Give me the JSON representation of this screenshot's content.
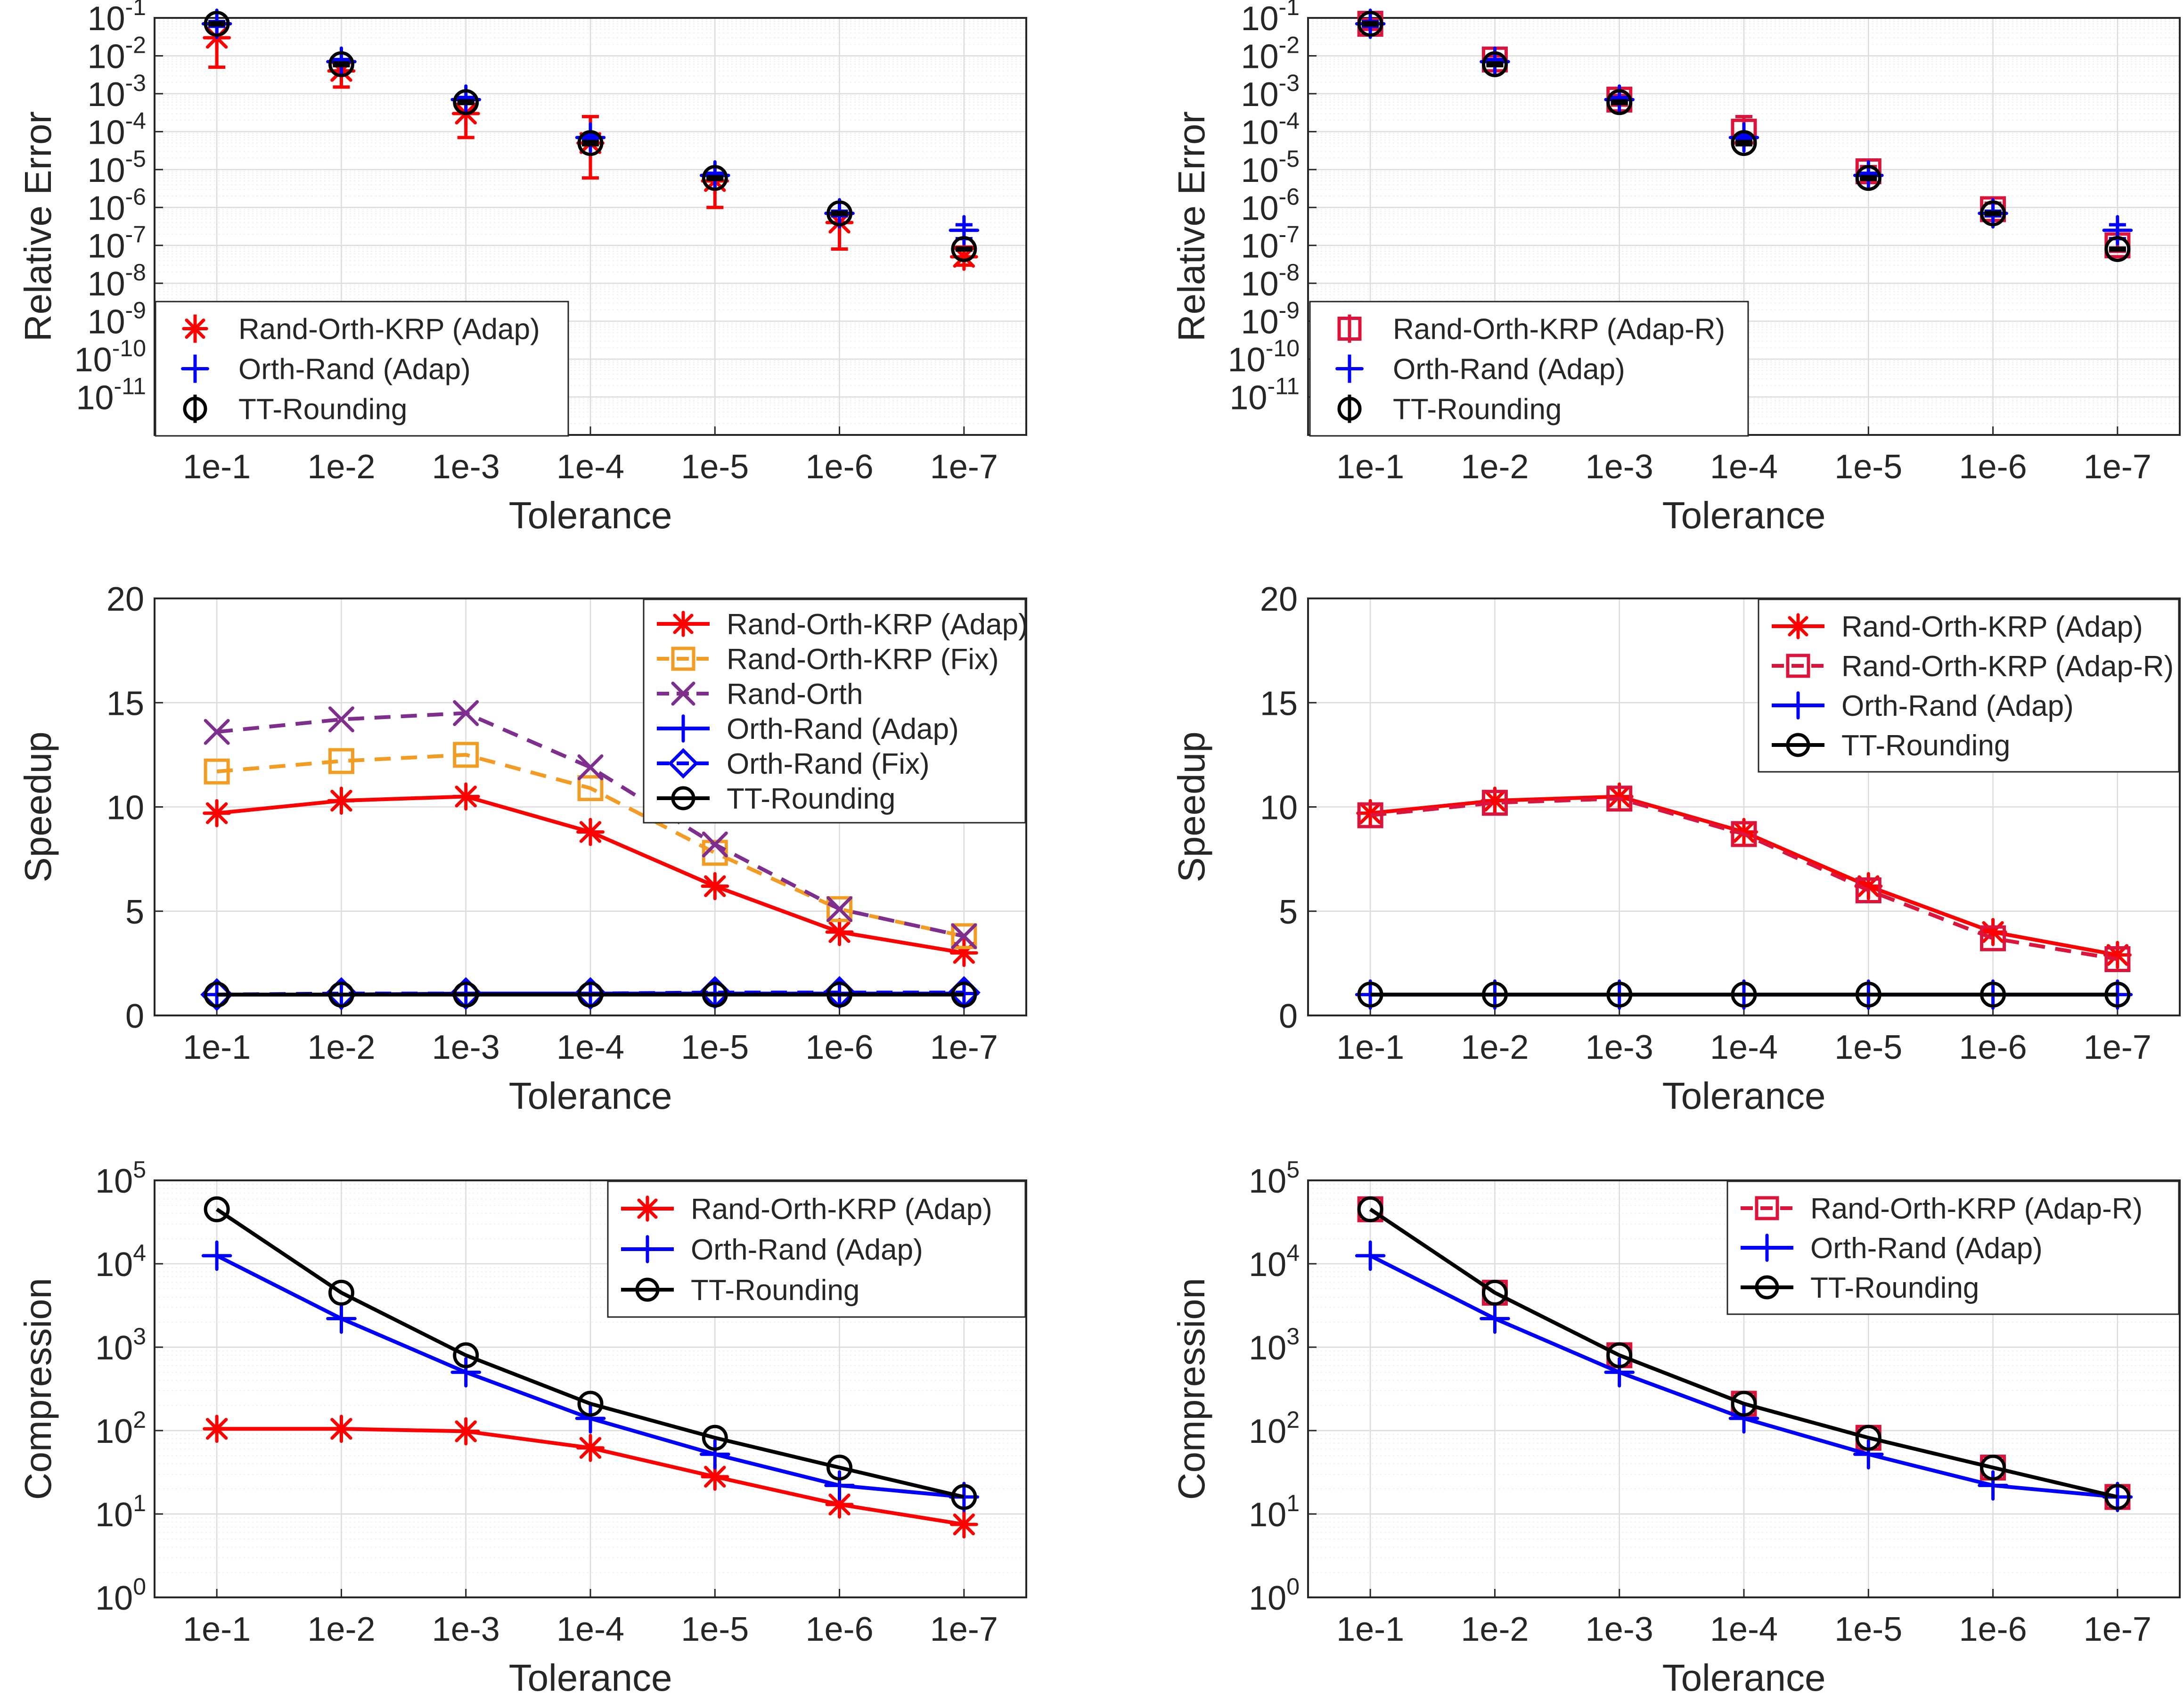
{
  "figure": {
    "xlabel": "Tolerance",
    "categories": [
      "1e-1",
      "1e-2",
      "1e-3",
      "1e-4",
      "1e-5",
      "1e-6",
      "1e-7"
    ],
    "colors": {
      "red": "#ff0000",
      "crimson": "#dc143c",
      "blue": "#0000ff",
      "black": "#000000",
      "orange": "#f39c24",
      "purple": "#7e2f8e",
      "axis": "#262626",
      "grid": "#dcdcdc"
    }
  },
  "chart_data": [
    {
      "id": "error-left",
      "type": "errorbar",
      "ylabel": "Relative Error",
      "xlabel": "Tolerance",
      "yscale": "log",
      "ylim": [
        1e-12,
        0.1
      ],
      "yticks": [
        {
          "value": 0.1,
          "base": "10",
          "exp": "-1"
        },
        {
          "value": 0.01,
          "base": "10",
          "exp": "-2"
        },
        {
          "value": 0.001,
          "base": "10",
          "exp": "-3"
        },
        {
          "value": 0.0001,
          "base": "10",
          "exp": "-4"
        },
        {
          "value": 1e-05,
          "base": "10",
          "exp": "-5"
        },
        {
          "value": 1e-06,
          "base": "10",
          "exp": "-6"
        },
        {
          "value": 1e-07,
          "base": "10",
          "exp": "-7"
        },
        {
          "value": 1e-08,
          "base": "10",
          "exp": "-8"
        },
        {
          "value": 1e-09,
          "base": "10",
          "exp": "-9"
        },
        {
          "value": 1e-10,
          "base": "10",
          "exp": "-10"
        },
        {
          "value": 1e-11,
          "base": "10",
          "exp": "-11"
        }
      ],
      "grid": true,
      "legend": "bottom-left",
      "series": [
        {
          "name": "Rand-Orth-KRP (Adap)",
          "color": "red",
          "marker": "asterisk",
          "lineStyle": "none",
          "values": [
            0.03,
            0.004,
            0.0003,
            5e-05,
            5e-06,
            4e-07,
            5e-08
          ],
          "low": [
            0.005,
            0.0015,
            7e-05,
            6e-06,
            1e-06,
            8e-08,
            3e-08
          ],
          "high": [
            0.07,
            0.007,
            0.0007,
            0.00025,
            7e-06,
            7e-07,
            9e-08
          ]
        },
        {
          "name": "Orth-Rand (Adap)",
          "color": "blue",
          "marker": "plus",
          "lineStyle": "none",
          "values": [
            0.07,
            0.007,
            0.0007,
            7e-05,
            7e-06,
            7e-07,
            2.5e-07
          ],
          "low": [
            0.06,
            0.006,
            0.0006,
            6e-05,
            6e-06,
            6e-07,
            1.5e-07
          ],
          "high": [
            0.08,
            0.008,
            0.0008,
            8e-05,
            8e-06,
            8e-07,
            3.5e-07
          ]
        },
        {
          "name": "TT-Rounding",
          "color": "black",
          "marker": "circle",
          "lineStyle": "none",
          "values": [
            0.07,
            0.006,
            0.0006,
            5e-05,
            6e-06,
            7e-07,
            8e-08
          ],
          "low": [
            0.065,
            0.0055,
            0.00055,
            4.5e-05,
            5.5e-06,
            6.5e-07,
            7.5e-08
          ],
          "high": [
            0.075,
            0.0065,
            0.00065,
            5.5e-05,
            6.5e-06,
            7.5e-07,
            8.5e-08
          ]
        }
      ]
    },
    {
      "id": "error-right",
      "type": "errorbar",
      "ylabel": "Relative Error",
      "xlabel": "Tolerance",
      "yscale": "log",
      "ylim": [
        1e-12,
        0.1
      ],
      "yticks": [
        {
          "value": 0.1,
          "base": "10",
          "exp": "-1"
        },
        {
          "value": 0.01,
          "base": "10",
          "exp": "-2"
        },
        {
          "value": 0.001,
          "base": "10",
          "exp": "-3"
        },
        {
          "value": 0.0001,
          "base": "10",
          "exp": "-4"
        },
        {
          "value": 1e-05,
          "base": "10",
          "exp": "-5"
        },
        {
          "value": 1e-06,
          "base": "10",
          "exp": "-6"
        },
        {
          "value": 1e-07,
          "base": "10",
          "exp": "-7"
        },
        {
          "value": 1e-08,
          "base": "10",
          "exp": "-8"
        },
        {
          "value": 1e-09,
          "base": "10",
          "exp": "-9"
        },
        {
          "value": 1e-10,
          "base": "10",
          "exp": "-10"
        },
        {
          "value": 1e-11,
          "base": "10",
          "exp": "-11"
        }
      ],
      "grid": true,
      "legend": "bottom-left",
      "series": [
        {
          "name": "Rand-Orth-KRP (Adap-R)",
          "color": "crimson",
          "marker": "square",
          "lineStyle": "none",
          "values": [
            0.07,
            0.008,
            0.0007,
            0.0001,
            9e-06,
            9e-07,
            1e-07
          ],
          "low": [
            0.05,
            0.006,
            0.0005,
            5e-05,
            6e-06,
            6e-07,
            7e-08
          ],
          "high": [
            0.09,
            0.01,
            0.0009,
            0.00025,
            1.2e-05,
            1.3e-06,
            1.5e-07
          ]
        },
        {
          "name": "Orth-Rand (Adap)",
          "color": "blue",
          "marker": "plus",
          "lineStyle": "none",
          "values": [
            0.07,
            0.007,
            0.0007,
            7e-05,
            7e-06,
            7e-07,
            2.5e-07
          ],
          "low": [
            0.06,
            0.006,
            0.0006,
            6e-05,
            6e-06,
            6e-07,
            1.5e-07
          ],
          "high": [
            0.08,
            0.008,
            0.0008,
            8e-05,
            8e-06,
            8e-07,
            3.5e-07
          ]
        },
        {
          "name": "TT-Rounding",
          "color": "black",
          "marker": "circle",
          "lineStyle": "none",
          "values": [
            0.07,
            0.006,
            0.0006,
            5e-05,
            6e-06,
            7e-07,
            8e-08
          ],
          "low": [
            0.065,
            0.0055,
            0.00055,
            4.5e-05,
            5.5e-06,
            6.5e-07,
            7.5e-08
          ],
          "high": [
            0.075,
            0.0065,
            0.00065,
            5.5e-05,
            6.5e-06,
            7.5e-07,
            8.5e-08
          ]
        }
      ]
    },
    {
      "id": "speedup-left",
      "type": "line",
      "ylabel": "Speedup",
      "xlabel": "Tolerance",
      "yscale": "linear",
      "ylim": [
        0,
        20
      ],
      "yticks": [
        {
          "value": 0,
          "label": "0"
        },
        {
          "value": 5,
          "label": "5"
        },
        {
          "value": 10,
          "label": "10"
        },
        {
          "value": 15,
          "label": "15"
        },
        {
          "value": 20,
          "label": "20"
        }
      ],
      "grid": true,
      "legend": "top-right",
      "series": [
        {
          "name": "Rand-Orth-KRP (Adap)",
          "color": "red",
          "marker": "asterisk",
          "lineStyle": "solid",
          "values": [
            9.7,
            10.3,
            10.5,
            8.8,
            6.2,
            4.0,
            3.0
          ]
        },
        {
          "name": "Rand-Orth-KRP (Fix)",
          "color": "orange",
          "marker": "square",
          "lineStyle": "dashed",
          "values": [
            11.7,
            12.2,
            12.5,
            10.9,
            7.8,
            5.1,
            3.8
          ]
        },
        {
          "name": "Rand-Orth",
          "color": "purple",
          "marker": "x",
          "lineStyle": "dashed",
          "values": [
            13.6,
            14.2,
            14.5,
            11.9,
            8.2,
            5.1,
            3.8
          ]
        },
        {
          "name": "Orth-Rand (Adap)",
          "color": "blue",
          "marker": "plus",
          "lineStyle": "solid",
          "values": [
            1.0,
            1.0,
            1.05,
            1.05,
            1.05,
            1.05,
            1.05
          ]
        },
        {
          "name": "Orth-Rand (Fix)",
          "color": "blue",
          "marker": "diamond",
          "lineStyle": "dashed",
          "values": [
            1.0,
            1.05,
            1.05,
            1.05,
            1.1,
            1.1,
            1.1
          ]
        },
        {
          "name": "TT-Rounding",
          "color": "black",
          "marker": "circle",
          "lineStyle": "solid",
          "values": [
            1.0,
            1.0,
            1.0,
            1.0,
            1.0,
            1.0,
            1.0
          ]
        }
      ]
    },
    {
      "id": "speedup-right",
      "type": "line",
      "ylabel": "Speedup",
      "xlabel": "Tolerance",
      "yscale": "linear",
      "ylim": [
        0,
        20
      ],
      "yticks": [
        {
          "value": 0,
          "label": "0"
        },
        {
          "value": 5,
          "label": "5"
        },
        {
          "value": 10,
          "label": "10"
        },
        {
          "value": 15,
          "label": "15"
        },
        {
          "value": 20,
          "label": "20"
        }
      ],
      "grid": true,
      "legend": "top-right",
      "series": [
        {
          "name": "Rand-Orth-KRP (Adap)",
          "color": "red",
          "marker": "asterisk",
          "lineStyle": "solid",
          "values": [
            9.7,
            10.3,
            10.5,
            8.8,
            6.2,
            4.0,
            2.9
          ]
        },
        {
          "name": "Rand-Orth-KRP (Adap-R)",
          "color": "crimson",
          "marker": "square",
          "lineStyle": "dashed",
          "values": [
            9.6,
            10.2,
            10.4,
            8.7,
            6.0,
            3.7,
            2.7
          ]
        },
        {
          "name": "Orth-Rand (Adap)",
          "color": "blue",
          "marker": "plus",
          "lineStyle": "solid",
          "values": [
            1.0,
            1.0,
            1.0,
            1.0,
            1.0,
            1.0,
            1.0
          ]
        },
        {
          "name": "TT-Rounding",
          "color": "black",
          "marker": "circle",
          "lineStyle": "solid",
          "values": [
            1.0,
            1.0,
            1.0,
            1.0,
            1.0,
            1.0,
            1.0
          ]
        }
      ]
    },
    {
      "id": "compression-left",
      "type": "line",
      "ylabel": "Compression",
      "xlabel": "Tolerance",
      "yscale": "log",
      "ylim": [
        1,
        100000
      ],
      "yticks": [
        {
          "value": 1,
          "base": "10",
          "exp": "0"
        },
        {
          "value": 10,
          "base": "10",
          "exp": "1"
        },
        {
          "value": 100,
          "base": "10",
          "exp": "2"
        },
        {
          "value": 1000,
          "base": "10",
          "exp": "3"
        },
        {
          "value": 10000,
          "base": "10",
          "exp": "4"
        },
        {
          "value": 100000,
          "base": "10",
          "exp": "5"
        }
      ],
      "grid": true,
      "legend": "top-right",
      "series": [
        {
          "name": "Rand-Orth-KRP (Adap)",
          "color": "red",
          "marker": "asterisk",
          "lineStyle": "solid",
          "values": [
            105,
            105,
            98,
            62,
            28,
            13,
            7.5
          ]
        },
        {
          "name": "Orth-Rand (Adap)",
          "color": "blue",
          "marker": "plus",
          "lineStyle": "solid",
          "values": [
            12500,
            2200,
            500,
            140,
            52,
            22,
            16
          ]
        },
        {
          "name": "TT-Rounding",
          "color": "black",
          "marker": "circle",
          "lineStyle": "solid",
          "values": [
            45000,
            4500,
            800,
            210,
            82,
            36,
            16
          ]
        }
      ]
    },
    {
      "id": "compression-right",
      "type": "line",
      "ylabel": "Compression",
      "xlabel": "Tolerance",
      "yscale": "log",
      "ylim": [
        1,
        100000
      ],
      "yticks": [
        {
          "value": 1,
          "base": "10",
          "exp": "0"
        },
        {
          "value": 10,
          "base": "10",
          "exp": "1"
        },
        {
          "value": 100,
          "base": "10",
          "exp": "2"
        },
        {
          "value": 1000,
          "base": "10",
          "exp": "3"
        },
        {
          "value": 10000,
          "base": "10",
          "exp": "4"
        },
        {
          "value": 100000,
          "base": "10",
          "exp": "5"
        }
      ],
      "grid": true,
      "legend": "top-right",
      "series": [
        {
          "name": "Rand-Orth-KRP (Adap-R)",
          "color": "crimson",
          "marker": "square",
          "lineStyle": "dashed",
          "values": [
            45000,
            4500,
            800,
            210,
            82,
            36,
            16
          ]
        },
        {
          "name": "Orth-Rand (Adap)",
          "color": "blue",
          "marker": "plus",
          "lineStyle": "solid",
          "values": [
            12500,
            2200,
            500,
            140,
            52,
            22,
            16
          ]
        },
        {
          "name": "TT-Rounding",
          "color": "black",
          "marker": "circle",
          "lineStyle": "solid",
          "values": [
            45000,
            4500,
            800,
            210,
            82,
            36,
            16
          ]
        }
      ]
    }
  ]
}
